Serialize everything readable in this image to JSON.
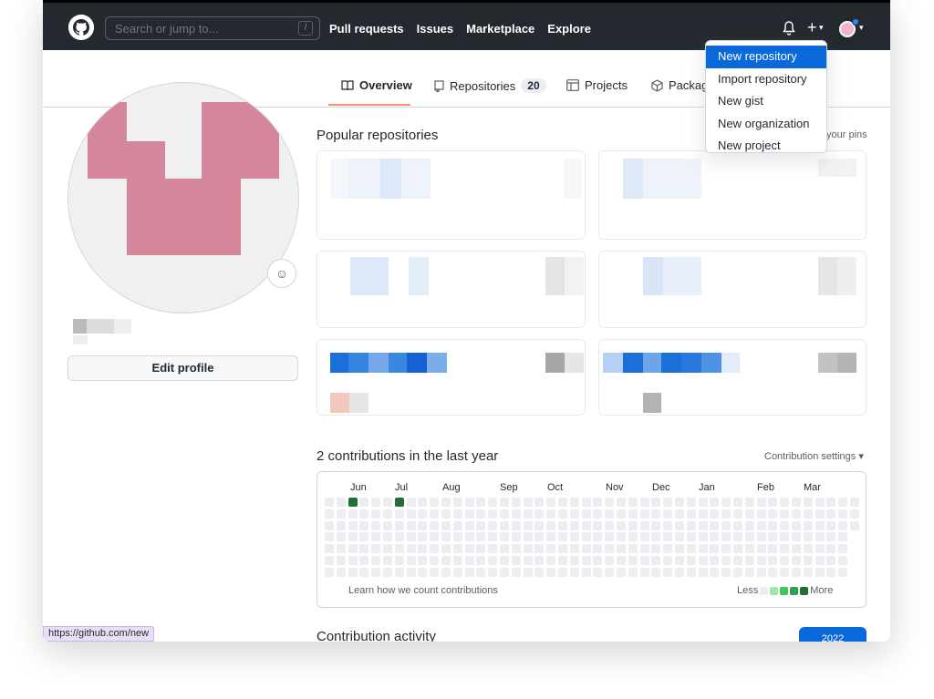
{
  "header": {
    "search_placeholder": "Search or jump to...",
    "slash": "/",
    "nav": [
      "Pull requests",
      "Issues",
      "Marketplace",
      "Explore"
    ]
  },
  "dropdown": [
    "New repository",
    "Import repository",
    "New gist",
    "New organization",
    "New project"
  ],
  "tabs": {
    "overview": "Overview",
    "repositories": "Repositories",
    "repositories_count": "20",
    "projects": "Projects",
    "packages": "Packag"
  },
  "profile": {
    "edit": "Edit profile"
  },
  "popular": {
    "title": "Popular repositories",
    "customize": "your pins"
  },
  "contrib": {
    "title": "2 contributions in the last year",
    "settings": "Contribution settings",
    "months": [
      "Jun",
      "Jul",
      "Aug",
      "Sep",
      "Oct",
      "Nov",
      "Dec",
      "Jan",
      "Feb",
      "Mar"
    ],
    "learn": "Learn how we count contributions",
    "less": "Less",
    "more": "More",
    "colors": [
      "#ebedf0",
      "#9be9a8",
      "#40c463",
      "#30a14e",
      "#216e39"
    ]
  },
  "activity": {
    "title": "Contribution activity",
    "year": "2022"
  },
  "status_url": "https://github.com/new"
}
